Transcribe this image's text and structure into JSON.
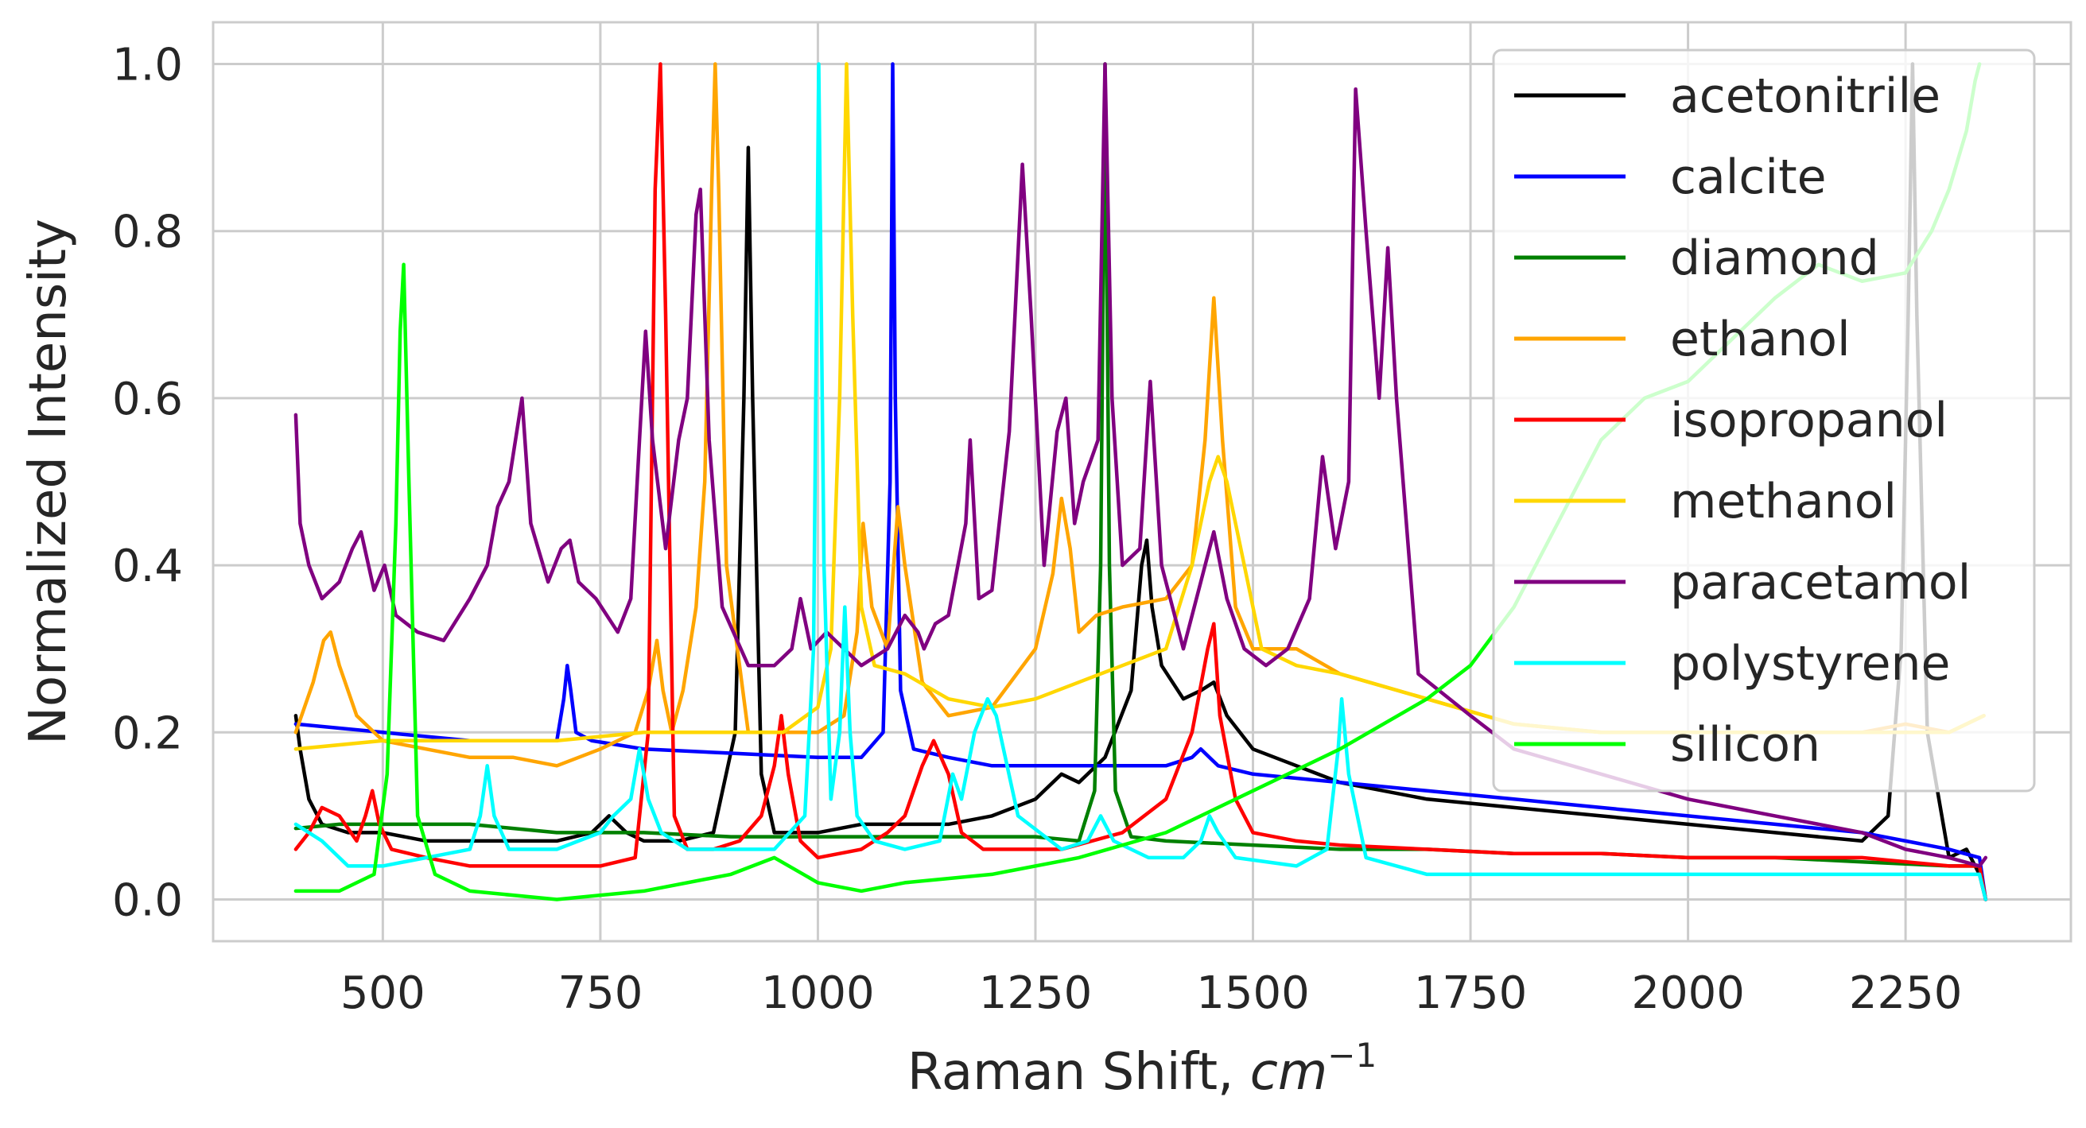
{
  "chart_data": {
    "type": "line",
    "title": "",
    "xlabel": "Raman Shift, ",
    "xlabel_math": "cm",
    "xlabel_sup": "−1",
    "ylabel": "Normalized Intensity",
    "xlim": [
      305,
      2440
    ],
    "ylim": [
      -0.05,
      1.05
    ],
    "xticks": [
      500,
      750,
      1000,
      1250,
      1500,
      1750,
      2000,
      2250
    ],
    "xtick_labels": [
      "500",
      "750",
      "1000",
      "1250",
      "1500",
      "1750",
      "2000",
      "2250"
    ],
    "yticks": [
      0.0,
      0.2,
      0.4,
      0.6,
      0.8,
      1.0
    ],
    "ytick_labels": [
      "0.0",
      "0.2",
      "0.4",
      "0.6",
      "0.8",
      "1.0"
    ],
    "grid": true,
    "legend_position": "top-right",
    "series": [
      {
        "name": "acetonitrile",
        "color": "#000000",
        "x": [
          400,
          405,
          415,
          430,
          460,
          500,
          550,
          600,
          650,
          700,
          740,
          760,
          780,
          800,
          840,
          880,
          905,
          915,
          920,
          925,
          935,
          950,
          1000,
          1050,
          1100,
          1150,
          1200,
          1250,
          1280,
          1300,
          1330,
          1360,
          1372,
          1378,
          1384,
          1395,
          1420,
          1440,
          1455,
          1470,
          1500,
          1550,
          1600,
          1700,
          1800,
          1900,
          2000,
          2100,
          2200,
          2230,
          2245,
          2253,
          2258,
          2263,
          2275,
          2300,
          2320,
          2335,
          2342
        ],
        "y": [
          0.22,
          0.18,
          0.12,
          0.09,
          0.08,
          0.08,
          0.07,
          0.07,
          0.07,
          0.07,
          0.08,
          0.1,
          0.08,
          0.07,
          0.07,
          0.08,
          0.2,
          0.6,
          0.9,
          0.6,
          0.15,
          0.08,
          0.08,
          0.09,
          0.09,
          0.09,
          0.1,
          0.12,
          0.15,
          0.14,
          0.17,
          0.25,
          0.4,
          0.43,
          0.35,
          0.28,
          0.24,
          0.25,
          0.26,
          0.22,
          0.18,
          0.16,
          0.14,
          0.12,
          0.11,
          0.1,
          0.09,
          0.08,
          0.07,
          0.1,
          0.3,
          0.7,
          1.0,
          0.7,
          0.2,
          0.05,
          0.06,
          0.03,
          0.0
        ]
      },
      {
        "name": "calcite",
        "color": "#0000ff",
        "x": [
          400,
          500,
          600,
          700,
          708,
          712,
          716,
          722,
          740,
          800,
          900,
          1000,
          1050,
          1075,
          1083,
          1086,
          1089,
          1095,
          1110,
          1150,
          1200,
          1300,
          1400,
          1430,
          1440,
          1460,
          1500,
          1600,
          1700,
          1800,
          1900,
          2000,
          2100,
          2200,
          2300,
          2335,
          2342
        ],
        "y": [
          0.21,
          0.2,
          0.19,
          0.19,
          0.24,
          0.28,
          0.25,
          0.2,
          0.19,
          0.18,
          0.175,
          0.17,
          0.17,
          0.2,
          0.5,
          1.0,
          0.6,
          0.25,
          0.18,
          0.17,
          0.16,
          0.16,
          0.16,
          0.17,
          0.18,
          0.16,
          0.15,
          0.14,
          0.13,
          0.12,
          0.11,
          0.1,
          0.09,
          0.08,
          0.06,
          0.05,
          0.0
        ]
      },
      {
        "name": "diamond",
        "color": "#008000",
        "x": [
          400,
          450,
          500,
          600,
          700,
          800,
          900,
          1000,
          1100,
          1200,
          1250,
          1300,
          1318,
          1325,
          1330,
          1335,
          1342,
          1360,
          1400,
          1500,
          1600,
          1700,
          1800,
          1900,
          2000,
          2100,
          2200,
          2300,
          2335,
          2342
        ],
        "y": [
          0.085,
          0.09,
          0.09,
          0.09,
          0.08,
          0.08,
          0.075,
          0.075,
          0.075,
          0.075,
          0.075,
          0.07,
          0.13,
          0.4,
          1.0,
          0.4,
          0.13,
          0.075,
          0.07,
          0.065,
          0.06,
          0.06,
          0.055,
          0.055,
          0.05,
          0.05,
          0.045,
          0.04,
          0.04,
          0.0
        ]
      },
      {
        "name": "ethanol",
        "color": "#ffa500",
        "x": [
          400,
          420,
          432,
          440,
          450,
          470,
          500,
          550,
          600,
          650,
          700,
          750,
          790,
          805,
          815,
          822,
          832,
          845,
          860,
          870,
          878,
          882,
          886,
          895,
          920,
          950,
          1000,
          1030,
          1045,
          1052,
          1062,
          1080,
          1092,
          1100,
          1120,
          1150,
          1200,
          1250,
          1270,
          1280,
          1290,
          1300,
          1320,
          1350,
          1400,
          1430,
          1445,
          1455,
          1465,
          1480,
          1500,
          1550,
          1600,
          1700,
          1800,
          1900,
          2000,
          2100,
          2200,
          2250,
          2300,
          2340
        ],
        "y": [
          0.2,
          0.26,
          0.31,
          0.32,
          0.28,
          0.22,
          0.19,
          0.18,
          0.17,
          0.17,
          0.16,
          0.18,
          0.2,
          0.25,
          0.31,
          0.25,
          0.2,
          0.25,
          0.35,
          0.5,
          0.85,
          1.0,
          0.85,
          0.4,
          0.2,
          0.2,
          0.2,
          0.22,
          0.32,
          0.45,
          0.35,
          0.3,
          0.47,
          0.4,
          0.26,
          0.22,
          0.23,
          0.3,
          0.39,
          0.48,
          0.42,
          0.32,
          0.34,
          0.35,
          0.36,
          0.4,
          0.55,
          0.72,
          0.55,
          0.35,
          0.3,
          0.3,
          0.27,
          0.24,
          0.21,
          0.2,
          0.2,
          0.2,
          0.2,
          0.21,
          0.2,
          0.22
        ]
      },
      {
        "name": "isopropanol",
        "color": "#ff0000",
        "x": [
          400,
          415,
          430,
          450,
          470,
          480,
          488,
          496,
          510,
          550,
          600,
          650,
          700,
          750,
          790,
          805,
          813,
          819,
          825,
          835,
          850,
          880,
          910,
          935,
          950,
          958,
          966,
          980,
          1000,
          1050,
          1080,
          1100,
          1120,
          1133,
          1150,
          1165,
          1190,
          1230,
          1280,
          1350,
          1400,
          1430,
          1448,
          1455,
          1462,
          1480,
          1500,
          1550,
          1600,
          1700,
          1800,
          1900,
          2000,
          2100,
          2200,
          2300,
          2335,
          2342
        ],
        "y": [
          0.06,
          0.08,
          0.11,
          0.1,
          0.07,
          0.1,
          0.13,
          0.09,
          0.06,
          0.05,
          0.04,
          0.04,
          0.04,
          0.04,
          0.05,
          0.2,
          0.85,
          1.0,
          0.7,
          0.1,
          0.06,
          0.06,
          0.07,
          0.1,
          0.16,
          0.22,
          0.15,
          0.07,
          0.05,
          0.06,
          0.08,
          0.1,
          0.16,
          0.19,
          0.15,
          0.08,
          0.06,
          0.06,
          0.06,
          0.08,
          0.12,
          0.2,
          0.3,
          0.33,
          0.22,
          0.12,
          0.08,
          0.07,
          0.065,
          0.06,
          0.055,
          0.055,
          0.05,
          0.05,
          0.05,
          0.04,
          0.04,
          0.0
        ]
      },
      {
        "name": "methanol",
        "color": "#ffd700",
        "x": [
          400,
          500,
          600,
          700,
          800,
          900,
          960,
          1000,
          1015,
          1025,
          1033,
          1040,
          1050,
          1065,
          1100,
          1150,
          1200,
          1250,
          1300,
          1350,
          1400,
          1430,
          1450,
          1460,
          1470,
          1490,
          1510,
          1550,
          1600,
          1700,
          1800,
          1900,
          2000,
          2100,
          2200,
          2250,
          2300,
          2340
        ],
        "y": [
          0.18,
          0.19,
          0.19,
          0.19,
          0.2,
          0.2,
          0.2,
          0.23,
          0.3,
          0.6,
          1.0,
          0.7,
          0.35,
          0.28,
          0.27,
          0.24,
          0.23,
          0.24,
          0.26,
          0.28,
          0.3,
          0.4,
          0.5,
          0.53,
          0.5,
          0.4,
          0.3,
          0.28,
          0.27,
          0.24,
          0.21,
          0.2,
          0.2,
          0.2,
          0.2,
          0.2,
          0.2,
          0.22
        ]
      },
      {
        "name": "paracetamol",
        "color": "#800080",
        "x": [
          400,
          405,
          415,
          430,
          450,
          465,
          475,
          490,
          502,
          515,
          540,
          570,
          600,
          620,
          632,
          645,
          660,
          670,
          690,
          705,
          715,
          725,
          745,
          770,
          785,
          795,
          802,
          810,
          825,
          840,
          850,
          860,
          865,
          875,
          890,
          920,
          950,
          970,
          980,
          992,
          1010,
          1030,
          1050,
          1080,
          1100,
          1115,
          1122,
          1135,
          1150,
          1170,
          1175,
          1185,
          1200,
          1220,
          1235,
          1245,
          1260,
          1275,
          1285,
          1295,
          1305,
          1322,
          1330,
          1338,
          1350,
          1370,
          1382,
          1395,
          1420,
          1440,
          1455,
          1470,
          1490,
          1515,
          1540,
          1565,
          1580,
          1595,
          1610,
          1618,
          1630,
          1645,
          1655,
          1665,
          1690,
          1750,
          1800,
          1900,
          2000,
          2100,
          2200,
          2250,
          2300,
          2335,
          2342
        ],
        "y": [
          0.58,
          0.45,
          0.4,
          0.36,
          0.38,
          0.42,
          0.44,
          0.37,
          0.4,
          0.34,
          0.32,
          0.31,
          0.36,
          0.4,
          0.47,
          0.5,
          0.6,
          0.45,
          0.38,
          0.42,
          0.43,
          0.38,
          0.36,
          0.32,
          0.36,
          0.55,
          0.68,
          0.55,
          0.42,
          0.55,
          0.6,
          0.82,
          0.85,
          0.55,
          0.35,
          0.28,
          0.28,
          0.3,
          0.36,
          0.3,
          0.32,
          0.3,
          0.28,
          0.3,
          0.34,
          0.32,
          0.3,
          0.33,
          0.34,
          0.45,
          0.55,
          0.36,
          0.37,
          0.56,
          0.88,
          0.7,
          0.4,
          0.56,
          0.6,
          0.45,
          0.5,
          0.55,
          1.0,
          0.6,
          0.4,
          0.42,
          0.62,
          0.4,
          0.3,
          0.38,
          0.44,
          0.36,
          0.3,
          0.28,
          0.3,
          0.36,
          0.53,
          0.42,
          0.5,
          0.97,
          0.8,
          0.6,
          0.78,
          0.6,
          0.27,
          0.22,
          0.18,
          0.15,
          0.12,
          0.1,
          0.08,
          0.06,
          0.05,
          0.04,
          0.05
        ]
      },
      {
        "name": "polystyrene",
        "color": "#00ffff",
        "x": [
          400,
          430,
          460,
          500,
          550,
          600,
          612,
          620,
          628,
          645,
          700,
          750,
          765,
          785,
          795,
          805,
          820,
          850,
          900,
          950,
          985,
          995,
          1001,
          1007,
          1015,
          1025,
          1031,
          1037,
          1045,
          1065,
          1100,
          1140,
          1155,
          1165,
          1180,
          1195,
          1205,
          1230,
          1280,
          1310,
          1325,
          1340,
          1380,
          1420,
          1440,
          1450,
          1460,
          1480,
          1550,
          1585,
          1598,
          1602,
          1610,
          1630,
          1700,
          1800,
          1900,
          2000,
          2100,
          2200,
          2300,
          2335,
          2342
        ],
        "y": [
          0.09,
          0.07,
          0.04,
          0.04,
          0.05,
          0.06,
          0.1,
          0.16,
          0.1,
          0.06,
          0.06,
          0.08,
          0.1,
          0.12,
          0.18,
          0.12,
          0.08,
          0.06,
          0.06,
          0.06,
          0.1,
          0.3,
          1.0,
          0.4,
          0.12,
          0.2,
          0.35,
          0.2,
          0.1,
          0.07,
          0.06,
          0.07,
          0.15,
          0.12,
          0.2,
          0.24,
          0.22,
          0.1,
          0.06,
          0.07,
          0.1,
          0.07,
          0.05,
          0.05,
          0.07,
          0.1,
          0.08,
          0.05,
          0.04,
          0.06,
          0.18,
          0.24,
          0.15,
          0.05,
          0.03,
          0.03,
          0.03,
          0.03,
          0.03,
          0.03,
          0.03,
          0.03,
          0.0
        ]
      },
      {
        "name": "silicon",
        "color": "#00ff00",
        "x": [
          400,
          450,
          490,
          505,
          515,
          520,
          524,
          530,
          540,
          560,
          600,
          700,
          800,
          900,
          950,
          1000,
          1050,
          1100,
          1200,
          1300,
          1400,
          1500,
          1600,
          1700,
          1750,
          1800,
          1850,
          1900,
          1950,
          2000,
          2050,
          2100,
          2150,
          2200,
          2250,
          2280,
          2300,
          2320,
          2330,
          2335
        ],
        "y": [
          0.01,
          0.01,
          0.03,
          0.15,
          0.45,
          0.68,
          0.76,
          0.5,
          0.1,
          0.03,
          0.01,
          0.0,
          0.01,
          0.03,
          0.05,
          0.02,
          0.01,
          0.02,
          0.03,
          0.05,
          0.08,
          0.13,
          0.18,
          0.24,
          0.28,
          0.35,
          0.45,
          0.55,
          0.6,
          0.62,
          0.67,
          0.72,
          0.76,
          0.74,
          0.75,
          0.8,
          0.85,
          0.92,
          0.98,
          1.0
        ]
      }
    ]
  }
}
